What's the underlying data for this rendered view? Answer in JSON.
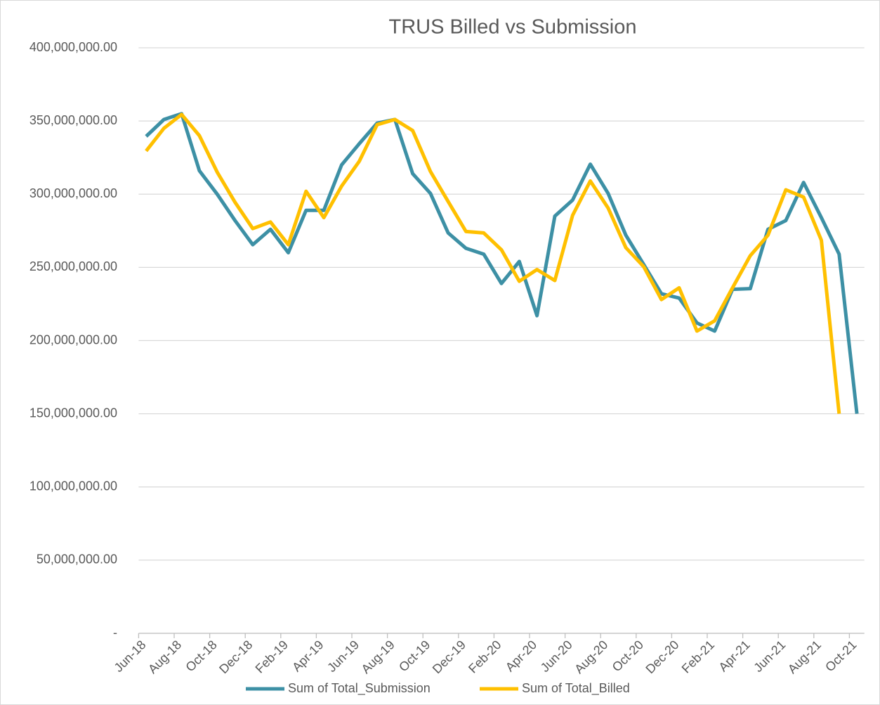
{
  "chart_data": {
    "type": "line",
    "title": "TRUS Billed vs Submission",
    "categories": [
      "Jun-18",
      null,
      "Aug-18",
      null,
      "Oct-18",
      null,
      "Dec-18",
      null,
      "Feb-19",
      null,
      "Apr-19",
      null,
      "Jun-19",
      null,
      "Aug-19",
      null,
      "Oct-19",
      null,
      "Dec-19",
      null,
      "Feb-20",
      null,
      "Apr-20",
      null,
      "Jun-20",
      null,
      "Aug-20",
      null,
      "Oct-20",
      null,
      "Dec-20",
      null,
      "Feb-21",
      null,
      "Apr-21",
      null,
      "Jun-21",
      null,
      "Aug-21",
      null,
      "Oct-21"
    ],
    "series": [
      {
        "name": "Sum of Total_Submission",
        "color": "#3d90a5",
        "values": [
          339500000,
          351000000,
          355000000,
          316000000,
          300000000,
          282000000,
          265500000,
          276000000,
          260000000,
          289000000,
          289000000,
          320000000,
          334500000,
          348500000,
          351000000,
          314000000,
          300500000,
          273500000,
          263000000,
          259000000,
          239000000,
          254000000,
          217000000,
          285000000,
          296000000,
          320500000,
          300500000,
          272000000,
          252000000,
          232000000,
          229000000,
          212000000,
          206500000,
          235000000,
          235500000,
          276000000,
          282000000,
          308000000,
          284000000,
          259000000,
          150000000
        ]
      },
      {
        "name": "Sum of Total_Billed",
        "color": "#ffc000",
        "values": [
          329500000,
          345000000,
          354500000,
          340000000,
          315000000,
          294500000,
          276500000,
          281000000,
          265500000,
          302000000,
          284000000,
          305500000,
          322500000,
          347500000,
          351000000,
          343500000,
          315500000,
          295000000,
          274500000,
          273500000,
          262000000,
          240500000,
          248500000,
          241000000,
          285500000,
          309000000,
          290500000,
          263500000,
          250500000,
          228000000,
          236000000,
          206500000,
          213500000,
          236000000,
          258000000,
          272000000,
          303000000,
          298000000,
          268500000,
          150000000,
          null
        ]
      }
    ],
    "ylim": [
      0,
      400000000
    ],
    "yticks": [
      {
        "value": 0,
        "label": "-"
      },
      {
        "value": 50000000,
        "label": "50,000,000.00"
      },
      {
        "value": 100000000,
        "label": "100,000,000.00"
      },
      {
        "value": 150000000,
        "label": "150,000,000.00"
      },
      {
        "value": 200000000,
        "label": "200,000,000.00"
      },
      {
        "value": 250000000,
        "label": "250,000,000.00"
      },
      {
        "value": 300000000,
        "label": "300,000,000.00"
      },
      {
        "value": 350000000,
        "label": "350,000,000.00"
      },
      {
        "value": 400000000,
        "label": "400,000,000.00"
      }
    ],
    "grid": true,
    "legend": "bottom"
  }
}
